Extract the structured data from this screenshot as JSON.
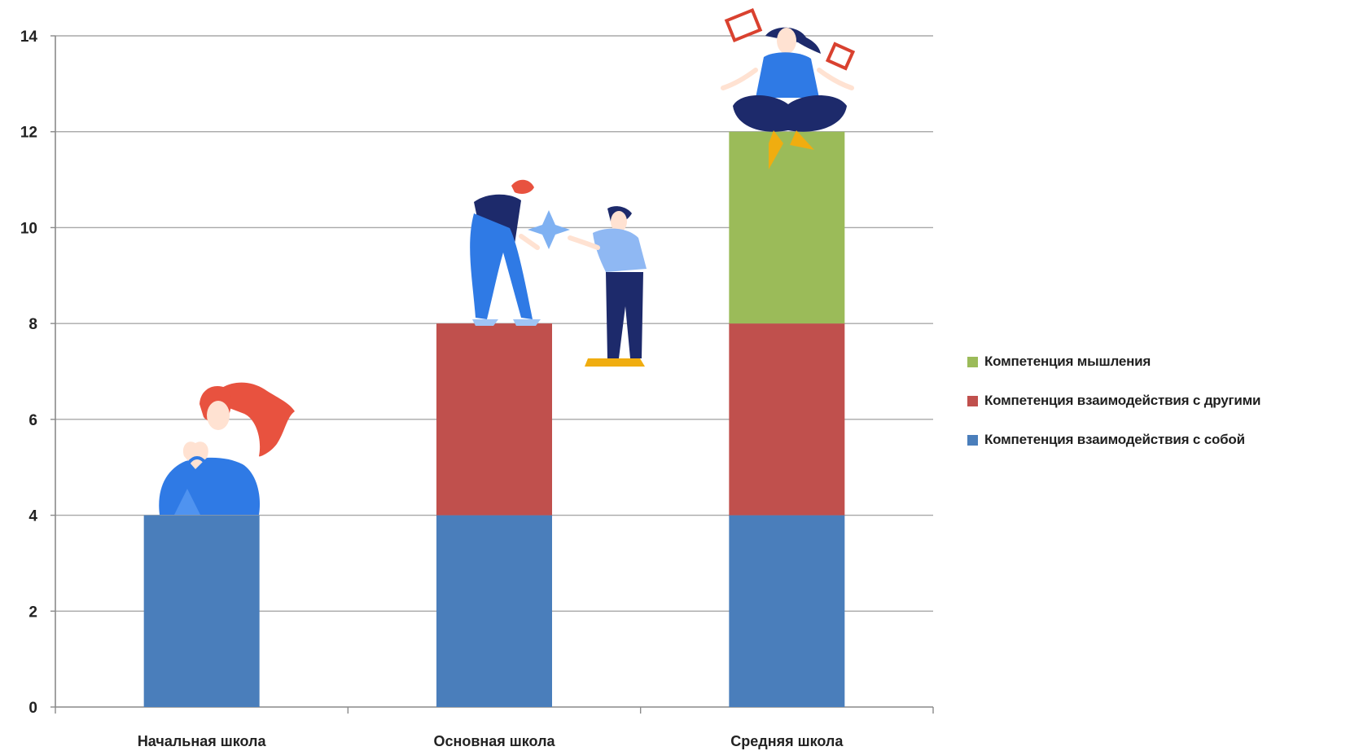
{
  "chart_data": {
    "type": "bar",
    "stacked": true,
    "categories": [
      "Начальная школа",
      "Основная школа",
      "Средняя школа"
    ],
    "series": [
      {
        "name": "Компетенция взаимодействия с собой",
        "color": "#4a7ebb",
        "values": [
          4,
          4,
          4
        ]
      },
      {
        "name": "Компетенция взаимодействия с другими",
        "color": "#c0504d",
        "values": [
          0,
          4,
          4
        ]
      },
      {
        "name": "Компетенция мышления",
        "color": "#9bbb59",
        "values": [
          0,
          0,
          4
        ]
      }
    ],
    "ylim": [
      0,
      14
    ],
    "yticks": [
      "0",
      "2",
      "4",
      "6",
      "8",
      "10",
      "12",
      "14"
    ],
    "grid": true,
    "legend_position": "right",
    "title": "",
    "xlabel": "",
    "ylabel": ""
  },
  "illustrations": [
    {
      "category": "Начальная школа",
      "icon": "girl-heart-hands-illustration"
    },
    {
      "category": "Основная школа",
      "icon": "teacher-and-child-illustration"
    },
    {
      "category": "Средняя школа",
      "icon": "meditating-woman-with-books-illustration"
    }
  ]
}
